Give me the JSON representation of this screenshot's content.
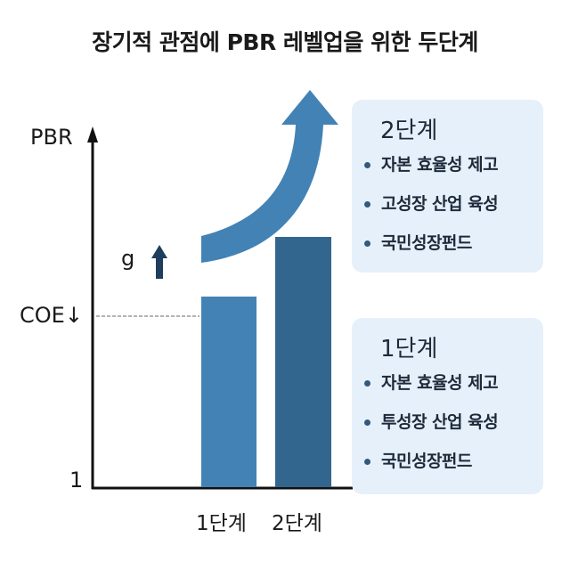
{
  "title": "장기적 관점에 PBR 레벨업을 위한 두단계",
  "axis": {
    "y_label": "PBR",
    "coe_label": "COE↓",
    "origin_label": "1",
    "g_label": "g"
  },
  "bars": [
    {
      "label": "1단계",
      "color": "#4382b4"
    },
    {
      "label": "2단계",
      "color": "#32668f"
    }
  ],
  "arrow_color": "#4382b4",
  "g_arrow_color": "#1f3d5c",
  "boxes": [
    {
      "title": "2단계",
      "items": [
        "자본 효율성 제고",
        "고성장 산업 육성",
        "국민성장펀드"
      ]
    },
    {
      "title": "1단계",
      "items": [
        "자본 효율성 제고",
        "투성장 산업 육성",
        "국민성장펀드"
      ]
    }
  ],
  "box_bg": "#e6f0fa"
}
